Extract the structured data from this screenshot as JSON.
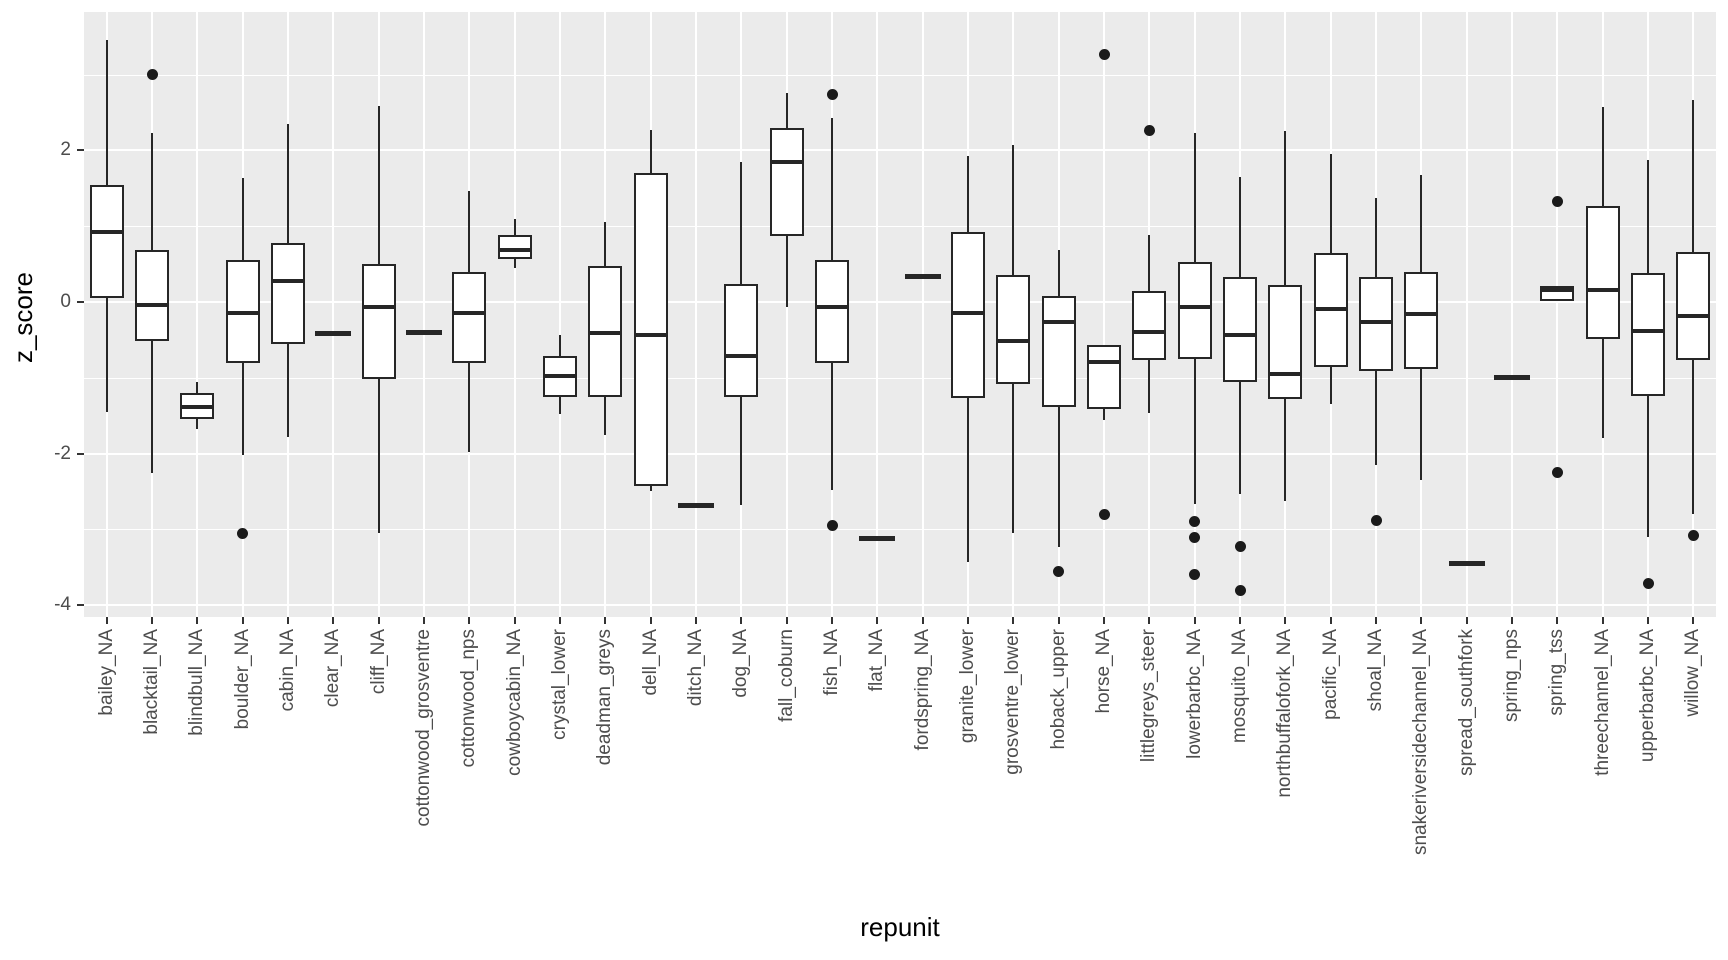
{
  "figure": {
    "xlabel": "repunit",
    "ylabel": "z_score"
  },
  "chart_data": {
    "type": "boxplot",
    "title": "",
    "xlabel": "repunit",
    "ylabel": "z_score",
    "legend": "none",
    "grid": "on",
    "panel_bg": "#EBEBEB",
    "grid_color": "#FFFFFF",
    "box_fill": "#FFFFFF",
    "box_stroke": "#262626",
    "outlier_color": "#1a1a1a",
    "axis_text_color": "#4D4D4D",
    "axis_title_color": "#000000",
    "ylim": [
      -4.16,
      3.83
    ],
    "y_major_ticks": [
      2,
      0,
      -2,
      -4
    ],
    "y_major_tick_labels": [
      "2",
      "0",
      "-2",
      "-4"
    ],
    "y_minor_ticks": [
      3,
      1,
      -1,
      -3
    ],
    "groups": [
      {
        "label": "bailey_NA",
        "lo": -1.45,
        "q1": 0.05,
        "med": 0.93,
        "q3": 1.54,
        "hi": 3.45,
        "outliers": []
      },
      {
        "label": "blacktail_NA",
        "lo": -2.26,
        "q1": -0.52,
        "med": -0.04,
        "q3": 0.69,
        "hi": 2.23,
        "outliers": [
          3.0
        ]
      },
      {
        "label": "blindbull_NA",
        "lo": -1.68,
        "q1": -1.55,
        "med": -1.38,
        "q3": -1.2,
        "hi": -1.05,
        "outliers": []
      },
      {
        "label": "boulder_NA",
        "lo": -2.02,
        "q1": -0.8,
        "med": -0.15,
        "q3": 0.55,
        "hi": 1.63,
        "outliers": [
          -3.05
        ]
      },
      {
        "label": "cabin_NA",
        "lo": -1.78,
        "q1": -0.55,
        "med": 0.28,
        "q3": 0.78,
        "hi": 2.35,
        "outliers": []
      },
      {
        "label": "clear_NA",
        "lo": -0.42,
        "q1": -0.42,
        "med": -0.42,
        "q3": -0.42,
        "hi": -0.42,
        "outliers": []
      },
      {
        "label": "cliff_NA",
        "lo": -3.05,
        "q1": -1.02,
        "med": -0.06,
        "q3": 0.5,
        "hi": 2.58,
        "outliers": []
      },
      {
        "label": "cottonwood_grosventre",
        "lo": -0.4,
        "q1": -0.4,
        "med": -0.4,
        "q3": -0.4,
        "hi": -0.4,
        "outliers": []
      },
      {
        "label": "cottonwood_nps",
        "lo": -1.98,
        "q1": -0.8,
        "med": -0.14,
        "q3": 0.4,
        "hi": 1.47,
        "outliers": []
      },
      {
        "label": "cowboycabin_NA",
        "lo": 0.45,
        "q1": 0.57,
        "med": 0.68,
        "q3": 0.88,
        "hi": 1.1,
        "outliers": []
      },
      {
        "label": "crystal_lower",
        "lo": -1.48,
        "q1": -1.25,
        "med": -0.97,
        "q3": -0.71,
        "hi": -0.43,
        "outliers": []
      },
      {
        "label": "deadman_greys",
        "lo": -1.75,
        "q1": -1.25,
        "med": -0.41,
        "q3": 0.48,
        "hi": 1.05,
        "outliers": []
      },
      {
        "label": "dell_NA",
        "lo": -2.5,
        "q1": -2.43,
        "med": -0.43,
        "q3": 1.7,
        "hi": 2.27,
        "outliers": []
      },
      {
        "label": "ditch_NA",
        "lo": -2.68,
        "q1": -2.68,
        "med": -2.68,
        "q3": -2.68,
        "hi": -2.68,
        "outliers": []
      },
      {
        "label": "dog_NA",
        "lo": -2.68,
        "q1": -1.25,
        "med": -0.71,
        "q3": 0.24,
        "hi": 1.85,
        "outliers": []
      },
      {
        "label": "fall_coburn",
        "lo": -0.07,
        "q1": 0.87,
        "med": 1.85,
        "q3": 2.3,
        "hi": 2.76,
        "outliers": []
      },
      {
        "label": "fish_NA",
        "lo": -2.48,
        "q1": -0.8,
        "med": -0.07,
        "q3": 0.55,
        "hi": 2.43,
        "outliers": [
          2.74,
          -2.95
        ]
      },
      {
        "label": "flat_NA",
        "lo": -3.12,
        "q1": -3.12,
        "med": -3.12,
        "q3": -3.12,
        "hi": -3.12,
        "outliers": []
      },
      {
        "label": "fordspring_NA",
        "lo": 0.33,
        "q1": 0.33,
        "med": 0.33,
        "q3": 0.33,
        "hi": 0.33,
        "outliers": []
      },
      {
        "label": "granite_lower",
        "lo": -3.43,
        "q1": -1.26,
        "med": -0.15,
        "q3": 0.93,
        "hi": 1.93,
        "outliers": []
      },
      {
        "label": "grosventre_lower",
        "lo": -3.05,
        "q1": -1.08,
        "med": -0.52,
        "q3": 0.36,
        "hi": 2.07,
        "outliers": []
      },
      {
        "label": "hoback_upper",
        "lo": -3.23,
        "q1": -1.38,
        "med": -0.27,
        "q3": 0.08,
        "hi": 0.69,
        "outliers": [
          -3.56
        ]
      },
      {
        "label": "horse_NA",
        "lo": -1.56,
        "q1": -1.41,
        "med": -0.79,
        "q3": -0.57,
        "hi": -0.57,
        "outliers": [
          3.27,
          -2.8
        ]
      },
      {
        "label": "littlegreys_steer",
        "lo": -1.47,
        "q1": -0.77,
        "med": -0.39,
        "q3": 0.14,
        "hi": 0.88,
        "outliers": [
          2.26
        ]
      },
      {
        "label": "lowerbarbc_NA",
        "lo": -2.66,
        "q1": -0.75,
        "med": -0.06,
        "q3": 0.53,
        "hi": 2.23,
        "outliers": [
          -2.89,
          -3.11,
          -3.59
        ]
      },
      {
        "label": "mosquito_NA",
        "lo": -2.53,
        "q1": -1.05,
        "med": -0.44,
        "q3": 0.33,
        "hi": 1.65,
        "outliers": [
          -3.23,
          -3.81
        ]
      },
      {
        "label": "northbuffalofork_NA",
        "lo": -2.62,
        "q1": -1.28,
        "med": -0.95,
        "q3": 0.22,
        "hi": 2.26,
        "outliers": []
      },
      {
        "label": "pacific_NA",
        "lo": -1.35,
        "q1": -0.86,
        "med": -0.09,
        "q3": 0.65,
        "hi": 1.95,
        "outliers": []
      },
      {
        "label": "shoal_NA",
        "lo": -2.15,
        "q1": -0.91,
        "med": -0.27,
        "q3": 0.33,
        "hi": 1.37,
        "outliers": [
          -2.88
        ]
      },
      {
        "label": "snakeriversidechannel_NA",
        "lo": -2.35,
        "q1": -0.88,
        "med": -0.16,
        "q3": 0.4,
        "hi": 1.68,
        "outliers": []
      },
      {
        "label": "spread_southfork",
        "lo": -3.45,
        "q1": -3.45,
        "med": -3.45,
        "q3": -3.45,
        "hi": -3.45,
        "outliers": []
      },
      {
        "label": "spring_nps",
        "lo": -1.0,
        "q1": -1.0,
        "med": -1.0,
        "q3": -1.0,
        "hi": -1.0,
        "outliers": []
      },
      {
        "label": "spring_tss",
        "lo": 0.01,
        "q1": 0.01,
        "med": 0.16,
        "q3": 0.21,
        "hi": 0.21,
        "outliers": [
          1.32,
          -2.25
        ]
      },
      {
        "label": "threechannel_NA",
        "lo": -1.8,
        "q1": -0.49,
        "med": 0.16,
        "q3": 1.26,
        "hi": 2.57,
        "outliers": []
      },
      {
        "label": "upperbarbc_NA",
        "lo": -3.1,
        "q1": -1.24,
        "med": -0.38,
        "q3": 0.38,
        "hi": 1.87,
        "outliers": [
          -3.72
        ]
      },
      {
        "label": "willow_NA",
        "lo": -2.8,
        "q1": -0.76,
        "med": -0.19,
        "q3": 0.66,
        "hi": 2.67,
        "outliers": [
          -3.08
        ]
      }
    ]
  }
}
